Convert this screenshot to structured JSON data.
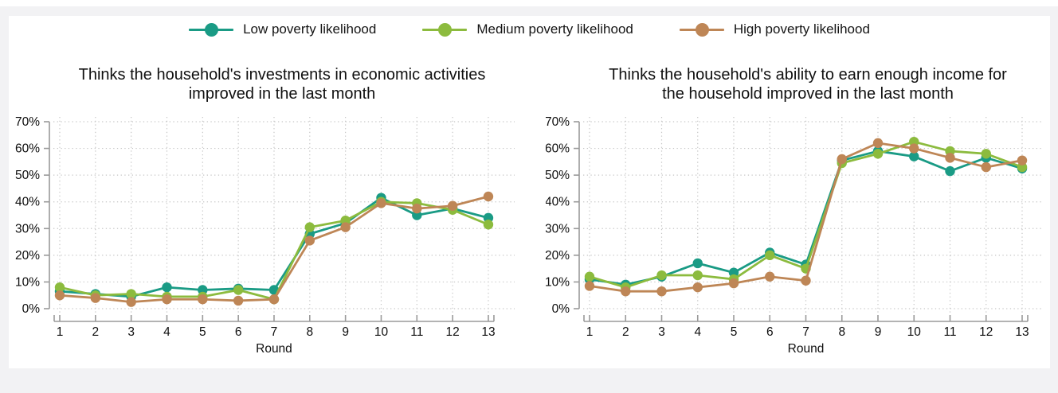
{
  "page": {
    "background_color": "#f2f2f4",
    "card_color": "#ffffff"
  },
  "legend": {
    "position": "top-center",
    "items": [
      {
        "label": "Low poverty likelihood",
        "color": "#1a9b85"
      },
      {
        "label": "Medium poverty likelihood",
        "color": "#8cbb3e"
      },
      {
        "label": "High poverty likelihood",
        "color": "#be8656"
      }
    ]
  },
  "chart_data": [
    {
      "type": "line",
      "title": "Thinks the household's investments in economic activities improved in the last month",
      "xlabel": "Round",
      "x": [
        1,
        2,
        3,
        4,
        5,
        6,
        7,
        8,
        9,
        10,
        11,
        12,
        13
      ],
      "ylim": [
        0,
        70
      ],
      "yticks": [
        "0%",
        "10%",
        "20%",
        "30%",
        "40%",
        "50%",
        "60%",
        "70%"
      ],
      "grid": true,
      "series": [
        {
          "name": "Low poverty likelihood",
          "color": "#1a9b85",
          "values": [
            6.5,
            5.5,
            4.5,
            8,
            7,
            7.5,
            7,
            28,
            32,
            41.5,
            35,
            37.5,
            34
          ]
        },
        {
          "name": "Medium poverty likelihood",
          "color": "#8cbb3e",
          "values": [
            8,
            5,
            5.5,
            4.5,
            4.5,
            7,
            3.5,
            30.5,
            33,
            40,
            39.5,
            37,
            31.5
          ]
        },
        {
          "name": "High poverty likelihood",
          "color": "#be8656",
          "values": [
            5,
            4,
            2.5,
            3.5,
            3.5,
            3,
            3.5,
            25.5,
            30.5,
            39.5,
            37.5,
            38.5,
            42
          ]
        }
      ]
    },
    {
      "type": "line",
      "title": "Thinks the household's ability to earn enough income for the household improved in the last month",
      "xlabel": "Round",
      "x": [
        1,
        2,
        3,
        4,
        5,
        6,
        7,
        8,
        9,
        10,
        11,
        12,
        13
      ],
      "ylim": [
        0,
        70
      ],
      "yticks": [
        "0%",
        "10%",
        "20%",
        "30%",
        "40%",
        "50%",
        "60%",
        "70%"
      ],
      "grid": true,
      "series": [
        {
          "name": "Low poverty likelihood",
          "color": "#1a9b85",
          "values": [
            11,
            9,
            12,
            17,
            13.5,
            21,
            16.5,
            55.5,
            59,
            57,
            51.5,
            56.5,
            52.5
          ]
        },
        {
          "name": "Medium poverty likelihood",
          "color": "#8cbb3e",
          "values": [
            12,
            8,
            12.5,
            12.5,
            11,
            20,
            15,
            54.5,
            58,
            62.5,
            59,
            58,
            53
          ]
        },
        {
          "name": "High poverty likelihood",
          "color": "#be8656",
          "values": [
            8.5,
            6.5,
            6.5,
            8,
            9.5,
            12,
            10.5,
            56,
            62,
            60,
            56.5,
            53,
            55.5
          ]
        }
      ]
    }
  ]
}
